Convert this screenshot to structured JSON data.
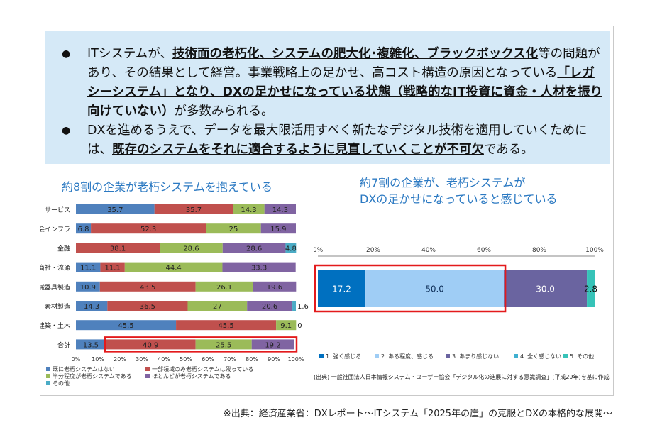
{
  "bullets": [
    {
      "segments": [
        {
          "t": "ITシステムが、",
          "b": false
        },
        {
          "t": "技術面の老朽化、システムの肥大化･複雑化、ブラックボックス化",
          "b": true
        },
        {
          "t": "等の問題があり、その結果として経営。事業戦略上の足かせ、高コスト構造の原因となっている",
          "b": false
        },
        {
          "t": "「レガシーシステム」となり、DXの足かせになっている状態（戦略的なIT投資に資金・人材を振り向けていない）",
          "b": true
        },
        {
          "t": "が多数みられる。",
          "b": false
        }
      ]
    },
    {
      "segments": [
        {
          "t": "DXを進めるうえで、データを最大限活用すべく新たなデジタル技術を適用していくためには、",
          "b": false
        },
        {
          "t": "既存のシステムをそれに適合するように見直していくことが不可欠",
          "b": true
        },
        {
          "t": "である。",
          "b": false
        }
      ]
    }
  ],
  "left_title": "約8割の企業が老朽システムを抱えている",
  "right_title_line1": "約7割の企業が、老朽システムが",
  "right_title_line2": "DXの足かせになっていると感じている",
  "source_note": "(出典) 一般社団法人日本情報システム・ユーザー協会「デジタル化の進展に対する意識調査」(平成29年)を基に作成",
  "footer": "※出典：経済産業省：DXレポート～ITシステム「2025年の崖」の克服とDXの本格的な展開～",
  "chart_data": [
    {
      "type": "bar",
      "orientation": "horizontal",
      "stacked": true,
      "title": "約8割の企業が老朽システムを抱えている",
      "categories": [
        "サービス",
        "社会インフラ",
        "金融",
        "商社・流通",
        "機械器具製造",
        "素材製造",
        "建築・土木",
        "合計"
      ],
      "series": [
        {
          "name": "既に老朽システムはない",
          "color": "#4f81bd",
          "values": [
            35.7,
            6.8,
            0,
            11.1,
            10.9,
            14.3,
            45.5,
            13.5
          ]
        },
        {
          "name": "一部領域のみ老朽システムは残っている",
          "color": "#c0504d",
          "values": [
            35.7,
            52.3,
            38.1,
            11.1,
            43.5,
            36.5,
            45.5,
            40.9
          ]
        },
        {
          "name": "半分程度が老朽システムである",
          "color": "#9bbb59",
          "values": [
            14.3,
            25,
            28.6,
            44.4,
            26.1,
            27,
            9.1,
            25.5
          ]
        },
        {
          "name": "ほとんどが老朽システムである",
          "color": "#8064a2",
          "values": [
            14.3,
            15.9,
            28.6,
            33.3,
            19.6,
            20.6,
            0,
            19.2
          ]
        },
        {
          "name": "その他",
          "color": "#4bacc6",
          "values": [
            0,
            0,
            4.8,
            0,
            0,
            1.6,
            0,
            0
          ]
        }
      ],
      "labels": [
        [
          "35.7",
          "35.7",
          "14.3",
          "14.3",
          ""
        ],
        [
          "6.8",
          "52.3",
          "25",
          "15.9",
          ""
        ],
        [
          "0",
          "38.1",
          "28.6",
          "28.6",
          "4.8"
        ],
        [
          "11.1",
          "11.1",
          "44.4",
          "33.3",
          ""
        ],
        [
          "10.9",
          "43.5",
          "26.1",
          "19.6",
          ""
        ],
        [
          "14.3",
          "36.5",
          "27",
          "20.6",
          "1.6"
        ],
        [
          "45.5",
          "45.5",
          "9.1",
          "",
          "0"
        ],
        [
          "13.5",
          "40.9",
          "25.5",
          "19.2",
          ""
        ]
      ],
      "xticks": [
        "0%",
        "10%",
        "20%",
        "30%",
        "40%",
        "50%",
        "60%",
        "70%",
        "80%",
        "90%",
        "100%"
      ],
      "xlim": [
        0,
        100
      ],
      "highlight_category": "合計",
      "highlight_color": "#e31a1c",
      "legend_position": "bottom"
    },
    {
      "type": "bar",
      "orientation": "horizontal",
      "stacked": true,
      "categories": [
        ""
      ],
      "series": [
        {
          "name": "1. 強く感じる",
          "color": "#0070c0",
          "values": [
            17.2
          ]
        },
        {
          "name": "2. ある程度、感じる",
          "color": "#9fcdf5",
          "values": [
            50.0
          ]
        },
        {
          "name": "3. あまり感じない",
          "color": "#6a64a0",
          "values": [
            30.0
          ]
        },
        {
          "name": "4. 全く感じない",
          "color": "#3fb0d0",
          "values": [
            0
          ]
        },
        {
          "name": "5. その他",
          "color": "#36c3b8",
          "values": [
            2.8
          ]
        }
      ],
      "labels": [
        "17.2",
        "50.0",
        "30.0",
        "",
        "2.8"
      ],
      "xticks": [
        "0%",
        "20%",
        "40%",
        "60%",
        "80%",
        "100%"
      ],
      "xlim": [
        0,
        100
      ],
      "highlight_series": [
        "1. 強く感じる",
        "2. ある程度、感じる"
      ],
      "highlight_color": "#e31a1c",
      "legend_position": "bottom"
    }
  ]
}
